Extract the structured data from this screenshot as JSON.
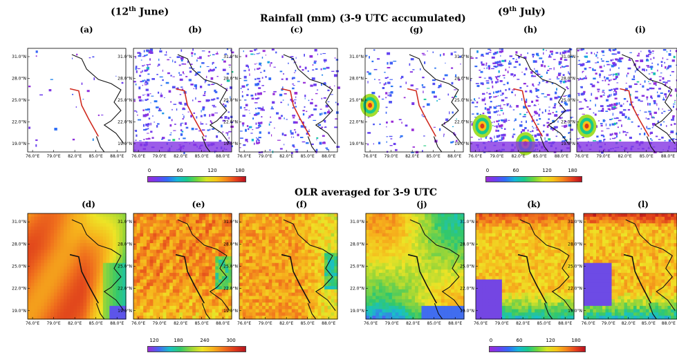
{
  "headings": {
    "june": "(12th June)",
    "rain": "Rainfall  (mm) (3-9  UTC accumulated)",
    "july": "(9th July)",
    "olr": "OLR averaged for 3-9 UTC"
  },
  "chart_data": [
    {
      "type": "heatmap",
      "panel": "(a)",
      "title": "Rainfall (mm) (3-9 UTC accumulated)",
      "date": "12th June",
      "x_ticks": [
        "76.0°E",
        "79.0°E",
        "82.0°E",
        "85.0°E",
        "88.0°E"
      ],
      "y_ticks": [
        "31.0°N",
        "28.0°N",
        "25.0°N",
        "22.0°N",
        "19.0°N"
      ],
      "coverage": "sparse",
      "colorbar": "rain_scale"
    },
    {
      "type": "heatmap",
      "panel": "(b)",
      "title": "Rainfall (mm) (3-9 UTC accumulated)",
      "date": "12th June",
      "x_ticks": [
        "76.0°E",
        "79.0°E",
        "82.0°E",
        "85.0°E",
        "88.0°E"
      ],
      "y_ticks": [
        "31.0°N",
        "28.0°N",
        "25.0°N",
        "22.0°N",
        "19.0°N"
      ],
      "coverage": "widespread",
      "colorbar": "rain_scale"
    },
    {
      "type": "heatmap",
      "panel": "(c)",
      "title": "Rainfall (mm) (3-9 UTC accumulated)",
      "date": "12th June",
      "x_ticks": [
        "76.0°E",
        "79.0°E",
        "82.0°E",
        "85.0°E",
        "88.0°E"
      ],
      "y_ticks": [
        "31.0°N",
        "28.0°N",
        "25.0°N",
        "22.0°N",
        "19.0°N"
      ],
      "coverage": "widespread",
      "colorbar": "rain_scale"
    },
    {
      "type": "heatmap",
      "panel": "(g)",
      "title": "Rainfall (mm) (3-9 UTC accumulated)",
      "date": "9th July",
      "x_ticks": [
        "76.0°E",
        "79.0°E",
        "82.0°E",
        "85.0°E",
        "88.0°E"
      ],
      "y_ticks": [
        "31.0°N",
        "28.0°N",
        "25.0°N",
        "22.0°N",
        "19.0°N"
      ],
      "coverage": "moderate",
      "colorbar": "rain_scale"
    },
    {
      "type": "heatmap",
      "panel": "(h)",
      "title": "Rainfall (mm) (3-9 UTC accumulated)",
      "date": "9th July",
      "x_ticks": [
        "76.0°E",
        "79.0°E",
        "82.0°E",
        "85.0°E",
        "88.0°E"
      ],
      "y_ticks": [
        "31.0°N",
        "28.0°N",
        "25.0°N",
        "22.0°N",
        "19.0°N"
      ],
      "coverage": "widespread",
      "colorbar": "rain_scale"
    },
    {
      "type": "heatmap",
      "panel": "(i)",
      "title": "Rainfall (mm) (3-9 UTC accumulated)",
      "date": "9th July",
      "x_ticks": [
        "76.0°E",
        "79.0°E",
        "82.0°E",
        "85.0°E",
        "88.0°E"
      ],
      "y_ticks": [
        "31.0°N",
        "28.0°N",
        "25.0°N",
        "22.0°N",
        "19.0°N"
      ],
      "coverage": "widespread",
      "colorbar": "rain_scale"
    },
    {
      "type": "heatmap",
      "panel": "(d)",
      "title": "OLR averaged for 3-9 UTC",
      "date": "12th June",
      "x_ticks": [
        "76.0°E",
        "79.0°E",
        "82.0°E",
        "85.0°E",
        "88.0°E"
      ],
      "y_ticks": [
        "31.0°N",
        "28.0°N",
        "25.0°N",
        "22.0°N",
        "19.0°N"
      ],
      "colorbar": "olr_scale"
    },
    {
      "type": "heatmap",
      "panel": "(e)",
      "title": "OLR averaged for 3-9 UTC",
      "date": "12th June",
      "x_ticks": [
        "76.0°E",
        "79.0°E",
        "82.0°E",
        "85.0°E",
        "88.0°E"
      ],
      "y_ticks": [
        "31.0°N",
        "28.0°N",
        "25.0°N",
        "22.0°N",
        "19.0°N"
      ],
      "colorbar": "olr_scale"
    },
    {
      "type": "heatmap",
      "panel": "(f)",
      "title": "OLR averaged for 3-9 UTC",
      "date": "12th June",
      "x_ticks": [
        "76.0°E",
        "79.0°E",
        "82.0°E",
        "85.0°E",
        "88.0°E"
      ],
      "y_ticks": [
        "31.0°N",
        "28.0°N",
        "25.0°N",
        "22.0°N",
        "19.0°N"
      ],
      "colorbar": "olr_scale"
    },
    {
      "type": "heatmap",
      "panel": "(j)",
      "title": "OLR averaged for 3-9 UTC",
      "date": "9th July",
      "x_ticks": [
        "76.0°E",
        "79.0°E",
        "82.0°E",
        "85.0°E",
        "88.0°E"
      ],
      "y_ticks": [
        "31.0°N",
        "28.0°N",
        "25.0°N",
        "22.0°N",
        "19.0°N"
      ],
      "colorbar": "olr_scale"
    },
    {
      "type": "heatmap",
      "panel": "(k)",
      "title": "OLR averaged for 3-9 UTC",
      "date": "9th July",
      "x_ticks": [
        "76.0°E",
        "79.0°E",
        "82.0°E",
        "85.0°E",
        "88.0°E"
      ],
      "y_ticks": [
        "31.0°N",
        "28.0°N",
        "25.0°N",
        "22.0°N",
        "19.0°N"
      ],
      "colorbar": "july_scale"
    },
    {
      "type": "heatmap",
      "panel": "(l)",
      "title": "OLR averaged for 3-9 UTC",
      "date": "9th July",
      "x_ticks": [
        "76.0°E",
        "79.0°E",
        "82.0°E",
        "85.0°E",
        "88.0°E"
      ],
      "y_ticks": [
        "31.0°N",
        "28.0°N",
        "25.0°N",
        "22.0°N",
        "19.0°N"
      ],
      "colorbar": "july_scale"
    }
  ],
  "colorbars": {
    "rain_scale": {
      "ticks": [
        "0",
        "60",
        "120",
        "180"
      ],
      "range": [
        0,
        200
      ]
    },
    "olr_scale": {
      "ticks": [
        "120",
        "180",
        "240",
        "300"
      ],
      "range": [
        100,
        320
      ]
    },
    "july_scale": {
      "ticks": [
        "0",
        "60",
        "120",
        "180"
      ],
      "range": [
        0,
        200
      ]
    }
  },
  "colors": {
    "rain_gradient": [
      "#9b2bd6",
      "#6a3ff0",
      "#2f6cf7",
      "#15b7d8",
      "#19c98a",
      "#70d63a",
      "#d7e522",
      "#f6c418",
      "#f5881c",
      "#e6421e",
      "#b80f1f"
    ],
    "olr_gradient": [
      "#9b2bd6",
      "#4566f2",
      "#18c0c8",
      "#33c86a",
      "#9ad637",
      "#eee426",
      "#f6b31c",
      "#f0711d",
      "#dd3a1c",
      "#b5141d"
    ],
    "track": "#d02a1e",
    "border": "#111111"
  }
}
